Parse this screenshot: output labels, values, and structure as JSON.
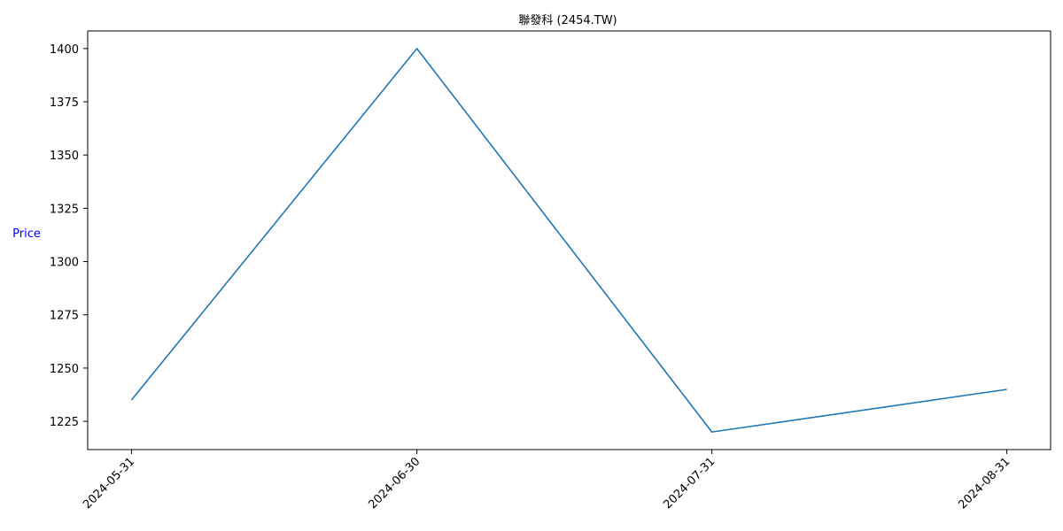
{
  "chart_data": {
    "type": "line",
    "title": "聯發科 (2454.TW)",
    "xlabel": "",
    "ylabel": "Price",
    "x": [
      "2024-05-31",
      "2024-06-30",
      "2024-07-31",
      "2024-08-31"
    ],
    "series": [
      {
        "values": [
          1235,
          1400,
          1220,
          1240
        ],
        "color": "#1f77b4"
      }
    ],
    "x_ticks": [
      "2024-05-31",
      "2024-06-30",
      "2024-07-31",
      "2024-08-31"
    ],
    "y_ticks": [
      1225,
      1250,
      1275,
      1300,
      1325,
      1350,
      1375,
      1400
    ],
    "ylim": [
      1211.75,
      1408.25
    ],
    "grid": false,
    "legend": false,
    "ylabel_color": "#0000ff",
    "axis_color": "#000000"
  }
}
